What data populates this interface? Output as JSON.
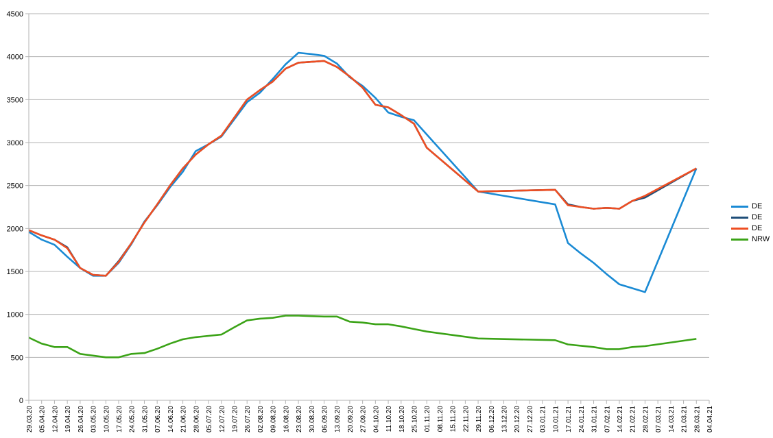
{
  "chart_data": {
    "type": "line",
    "x": [
      "29.03.20",
      "05.04.20",
      "12.04.20",
      "19.04.20",
      "26.04.20",
      "03.05.20",
      "10.05.20",
      "17.05.20",
      "24.05.20",
      "31.05.20",
      "07.06.20",
      "14.06.20",
      "21.06.20",
      "28.06.20",
      "05.07.20",
      "12.07.20",
      "19.07.20",
      "26.07.20",
      "02.08.20",
      "09.08.20",
      "16.08.20",
      "23.08.20",
      "30.08.20",
      "06.09.20",
      "13.09.20",
      "20.09.20",
      "27.09.20",
      "04.10.20",
      "11.10.20",
      "18.10.20",
      "25.10.20",
      "01.11.20",
      "08.11.20",
      "15.11.20",
      "22.11.20",
      "29.11.20",
      "06.12.20",
      "13.12.20",
      "20.12.20",
      "27.12.20",
      "03.01.21",
      "10.01.21",
      "17.01.21",
      "24.01.21",
      "31.01.21",
      "07.02.21",
      "14.02.21",
      "21.02.21",
      "28.02.21",
      "07.03.21",
      "14.03.21",
      "21.03.21",
      "28.03.21",
      "04.04.21"
    ],
    "ylim": [
      0,
      4500
    ],
    "yticks": [
      0,
      500,
      1000,
      1500,
      2000,
      2500,
      3000,
      3500,
      4000,
      4500
    ],
    "grid": true,
    "legend_position": "right",
    "series": [
      {
        "name": "DE",
        "color": "#1a8ad4",
        "values": [
          1960,
          1870,
          1810,
          1670,
          1540,
          1450,
          1450,
          1600,
          1820,
          2080,
          2270,
          2480,
          2660,
          2900,
          2980,
          3070,
          3270,
          3470,
          3580,
          3740,
          3910,
          4045,
          4030,
          4010,
          3920,
          3760,
          3660,
          3520,
          3350,
          3300,
          3260,
          null,
          null,
          null,
          null,
          2430,
          null,
          null,
          null,
          null,
          null,
          2280,
          1830,
          1710,
          1600,
          1470,
          1350,
          null,
          1260,
          null,
          null,
          null,
          2700,
          null
        ]
      },
      {
        "name": "DE",
        "color": "#1f4e79",
        "values": [
          1980,
          1920,
          1870,
          1780,
          1540,
          1460,
          1450,
          1620,
          1830,
          2070,
          2280,
          2500,
          2700,
          2860,
          2980,
          3080,
          3290,
          3500,
          3610,
          3710,
          3860,
          3930,
          3940,
          3950,
          3880,
          3770,
          3640,
          3440,
          3410,
          3320,
          3220,
          2940,
          null,
          null,
          null,
          2430,
          null,
          null,
          null,
          null,
          null,
          2450,
          2280,
          2250,
          2230,
          2240,
          2230,
          2320,
          2360,
          null,
          null,
          null,
          2700,
          null
        ]
      },
      {
        "name": "DE",
        "color": "#ee4e22",
        "values": [
          1980,
          1920,
          1870,
          1770,
          1540,
          1460,
          1450,
          1610,
          1830,
          2070,
          2280,
          2500,
          2700,
          2860,
          2980,
          3080,
          3290,
          3500,
          3610,
          3710,
          3860,
          3930,
          3940,
          3950,
          3880,
          3770,
          3640,
          3440,
          3410,
          3320,
          3220,
          2940,
          null,
          null,
          null,
          2430,
          null,
          null,
          null,
          null,
          null,
          2450,
          2270,
          2250,
          2230,
          2240,
          2230,
          2320,
          2380,
          null,
          null,
          null,
          2700,
          null
        ]
      },
      {
        "name": "NRW",
        "color": "#3ba317",
        "values": [
          730,
          660,
          620,
          620,
          540,
          520,
          500,
          500,
          540,
          550,
          600,
          660,
          710,
          735,
          750,
          765,
          850,
          930,
          950,
          960,
          985,
          985,
          980,
          975,
          975,
          915,
          905,
          885,
          885,
          860,
          830,
          800,
          null,
          null,
          null,
          720,
          null,
          null,
          null,
          null,
          null,
          700,
          650,
          635,
          620,
          595,
          595,
          620,
          630,
          null,
          null,
          null,
          715,
          null
        ]
      }
    ]
  }
}
